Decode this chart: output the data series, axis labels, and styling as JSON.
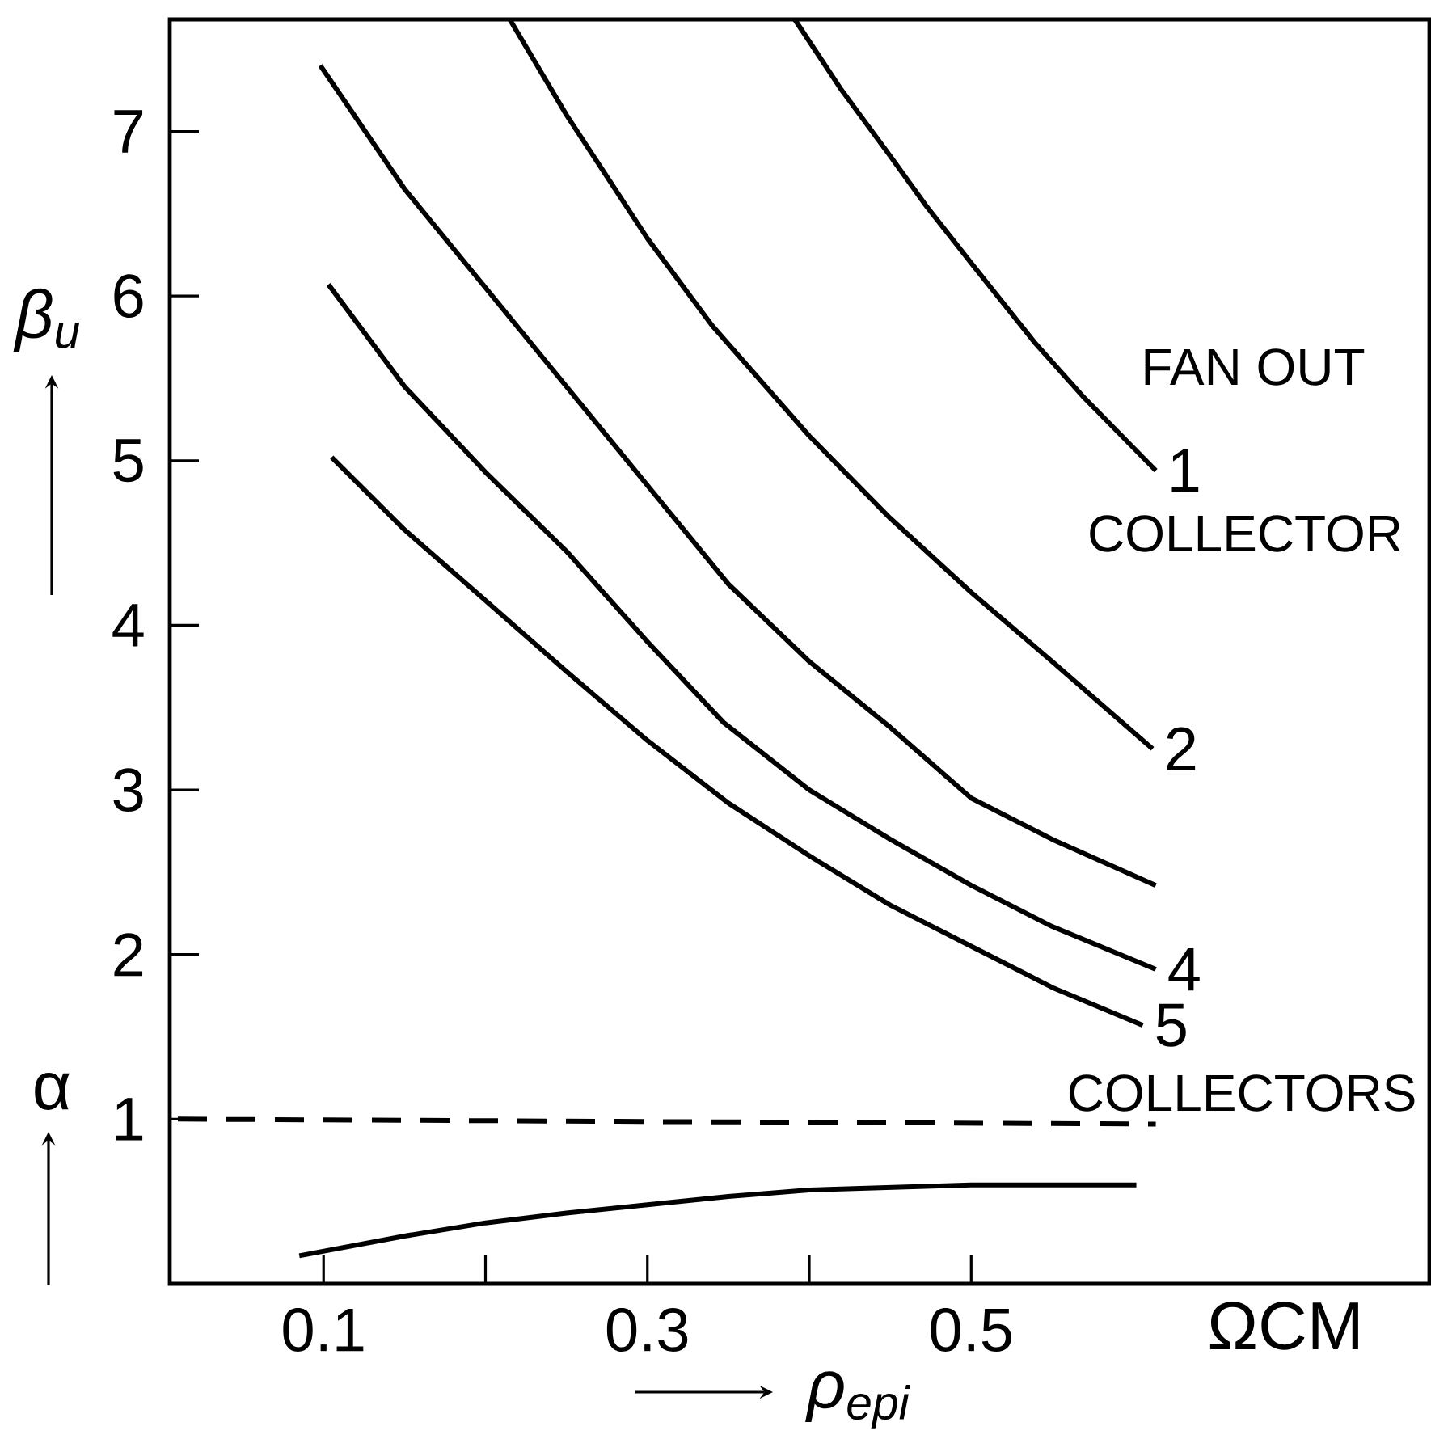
{
  "chart_data": {
    "type": "line",
    "ylabel": "β$_{u}$",
    "xlabel": "ρ$_{epi}$",
    "xlim": [
      0.005,
      0.783
    ],
    "ylim": [
      0,
      7.68
    ],
    "xticks": [
      0.1,
      0.3,
      0.5
    ],
    "yticks": [
      1,
      2,
      3,
      4,
      5,
      6,
      7
    ],
    "series": [
      {
        "name": "1",
        "color": "#000000",
        "x": [
          0.391,
          0.42,
          0.45,
          0.472,
          0.5,
          0.539,
          0.57,
          0.6,
          0.614
        ],
        "values": [
          7.68,
          7.25,
          6.85,
          6.55,
          6.2,
          5.72,
          5.38,
          5.08,
          4.94
        ]
      },
      {
        "name": "2",
        "color": "#000000",
        "x": [
          0.215,
          0.25,
          0.3,
          0.34,
          0.4,
          0.45,
          0.5,
          0.55,
          0.592,
          0.612
        ],
        "values": [
          7.68,
          7.1,
          6.35,
          5.82,
          5.15,
          4.65,
          4.2,
          3.78,
          3.42,
          3.25
        ]
      },
      {
        "color": "#000000",
        "x": [
          0.098,
          0.15,
          0.2,
          0.25,
          0.3,
          0.35,
          0.4,
          0.45,
          0.5,
          0.55,
          0.614
        ],
        "values": [
          7.4,
          6.65,
          6.05,
          5.45,
          4.85,
          4.25,
          3.78,
          3.38,
          2.95,
          2.7,
          2.42
        ]
      },
      {
        "name": "4",
        "color": "#000000",
        "x": [
          0.103,
          0.15,
          0.2,
          0.25,
          0.3,
          0.347,
          0.4,
          0.45,
          0.5,
          0.55,
          0.614
        ],
        "values": [
          6.07,
          5.45,
          4.93,
          4.45,
          3.9,
          3.41,
          3.0,
          2.7,
          2.42,
          2.17,
          1.91
        ]
      },
      {
        "name": "5",
        "color": "#000000",
        "x": [
          0.105,
          0.15,
          0.2,
          0.25,
          0.3,
          0.35,
          0.4,
          0.45,
          0.5,
          0.55,
          0.606
        ],
        "values": [
          5.02,
          4.58,
          4.15,
          3.72,
          3.3,
          2.92,
          2.6,
          2.3,
          2.05,
          1.8,
          1.57
        ]
      },
      {
        "color": "#000000",
        "line_style": "dashed",
        "x": [
          0.01,
          0.614
        ],
        "values": [
          1,
          0.97
        ]
      },
      {
        "color": "#000000",
        "x": [
          0.085,
          0.15,
          0.2,
          0.25,
          0.3,
          0.35,
          0.4,
          0.5,
          0.602
        ],
        "values": [
          0.17,
          0.29,
          0.37,
          0.43,
          0.48,
          0.53,
          0.57,
          0.6,
          0.6
        ]
      }
    ],
    "annotations": [
      "FAN OUT",
      "COLLECTOR",
      "COLLECTORS",
      "ΩCM",
      "α"
    ]
  }
}
